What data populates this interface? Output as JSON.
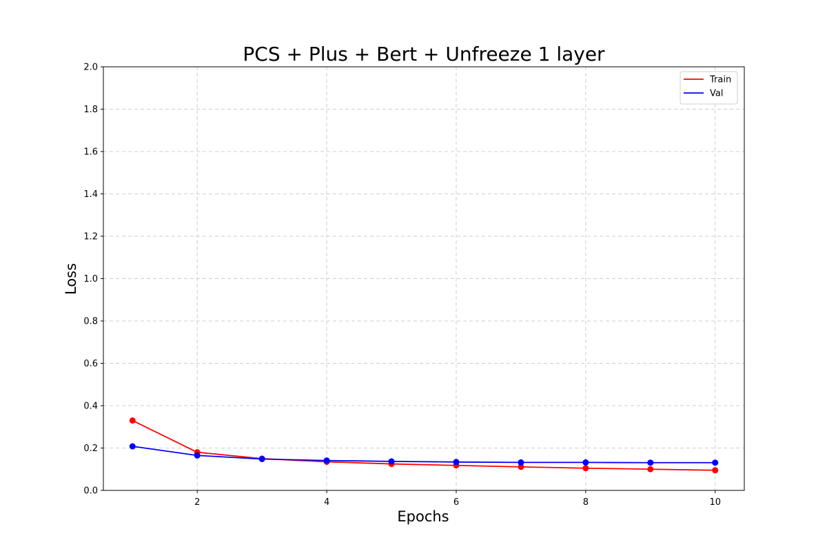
{
  "chart_data": {
    "type": "line",
    "title": "PCS + Plus + Bert + Unfreeze 1 layer",
    "xlabel": "Epochs",
    "ylabel": "Loss",
    "xlim": [
      0.55,
      10.45
    ],
    "ylim": [
      0,
      2.0
    ],
    "xticks": [
      2,
      4,
      6,
      8,
      10
    ],
    "yticks": [
      0.0,
      0.2,
      0.4,
      0.6,
      0.8,
      1.0,
      1.2,
      1.4,
      1.6,
      1.8,
      2.0
    ],
    "grid": true,
    "grid_style": "dashed",
    "legend_position": "top-right",
    "x": [
      1,
      2,
      3,
      4,
      5,
      6,
      7,
      8,
      9,
      10
    ],
    "series": [
      {
        "name": "Train",
        "color": "#ff0000",
        "values": [
          0.33,
          0.18,
          0.15,
          0.135,
          0.125,
          0.118,
          0.111,
          0.105,
          0.1,
          0.095
        ]
      },
      {
        "name": "Val",
        "color": "#0000ff",
        "values": [
          0.208,
          0.165,
          0.148,
          0.141,
          0.137,
          0.134,
          0.132,
          0.132,
          0.131,
          0.131
        ]
      }
    ]
  }
}
